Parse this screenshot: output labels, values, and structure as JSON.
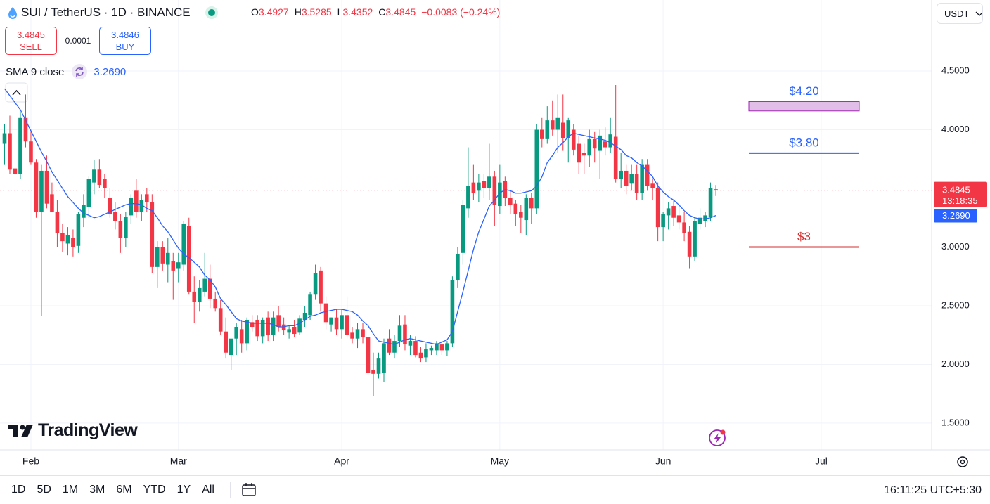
{
  "header": {
    "symbol": "SUI / TetherUS · 1D · BINANCE",
    "o": "O",
    "h": "H",
    "l": "L",
    "c": "C",
    "change": "−0.0083 (−0.24%)",
    "currency": "USDT"
  },
  "trade": {
    "sell_price": "3.4845",
    "sell": "SELL",
    "spread": "0.0001",
    "buy_price": "3.4846",
    "buy": "BUY"
  },
  "countdown": "13:18:35",
  "logo": "TradingView",
  "toolbar": {
    "timeframes": [
      "1D",
      "5D",
      "1M",
      "3M",
      "6M",
      "YTD",
      "1Y",
      "All"
    ],
    "clock": "16:11:25 UTC+5:30"
  },
  "chart_data": {
    "type": "candlestick",
    "categories": [
      null,
      null,
      null,
      null,
      null,
      "Feb",
      null,
      null,
      null,
      null,
      null,
      null,
      null,
      null,
      null,
      null,
      null,
      null,
      null,
      null,
      null,
      null,
      null,
      null,
      null,
      null,
      null,
      null,
      null,
      null,
      null,
      null,
      null,
      "Mar",
      null,
      null,
      null,
      null,
      null,
      null,
      null,
      null,
      null,
      null,
      null,
      null,
      null,
      null,
      null,
      null,
      null,
      null,
      null,
      null,
      null,
      null,
      null,
      null,
      null,
      null,
      null,
      null,
      null,
      null,
      "Apr",
      null,
      null,
      null,
      null,
      null,
      null,
      null,
      null,
      null,
      null,
      null,
      null,
      null,
      null,
      null,
      null,
      null,
      null,
      null,
      null,
      null,
      null,
      null,
      null,
      null,
      null,
      null,
      null,
      null,
      "May",
      null,
      null,
      null,
      null,
      null,
      null,
      null,
      null,
      null,
      null,
      null,
      null,
      null,
      null,
      null,
      null,
      null,
      null,
      null,
      null,
      null,
      null,
      null,
      null,
      null,
      null,
      null,
      null,
      null,
      null,
      "Jun",
      null,
      null,
      null,
      null,
      null,
      null,
      null,
      null,
      null,
      null,
      null,
      null,
      null,
      null,
      null,
      null,
      null,
      null,
      null,
      null,
      null,
      null,
      null,
      null,
      null,
      null,
      null,
      null,
      null,
      "Jul"
    ],
    "open": [
      3.88,
      3.97,
      3.67,
      3.62,
      4.1,
      3.9,
      3.72,
      3.3,
      3.65,
      3.45,
      3.3,
      3.12,
      3.03,
      3.08,
      3.01,
      3.25,
      3.34,
      3.55,
      3.66,
      3.58,
      3.42,
      3.3,
      3.22,
      3.08,
      3.27,
      3.48,
      3.3,
      3.45,
      3.38,
      2.83,
      3.0,
      2.85,
      2.88,
      2.82,
      2.85,
      3.18,
      2.62,
      2.53,
      2.62,
      2.73,
      2.56,
      2.48,
      2.28,
      2.08,
      2.22,
      2.3,
      2.18,
      2.36,
      2.38,
      2.24,
      2.4,
      2.25,
      2.42,
      2.34,
      2.27,
      2.32,
      2.27,
      2.38,
      2.42,
      2.6,
      2.8,
      2.52,
      2.34,
      2.4,
      2.3,
      2.42,
      2.27,
      2.22,
      2.3,
      2.23,
      1.95,
      1.92,
      1.93,
      2.22,
      2.1,
      2.2,
      2.34,
      2.16,
      2.2,
      2.1,
      2.06,
      2.12,
      2.12,
      2.17,
      2.12,
      2.18,
      2.72,
      2.95,
      3.33,
      3.55,
      3.48,
      3.56,
      3.5,
      3.6,
      3.35,
      3.56,
      3.42,
      3.37,
      3.3,
      3.23,
      3.42,
      3.33,
      4.0,
      3.92,
      4.08,
      4.0,
      4.06,
      3.93,
      4.0,
      3.88,
      3.8,
      3.78,
      3.92,
      3.82,
      3.9,
      3.85,
      3.94,
      3.58,
      3.65,
      3.54,
      3.62,
      3.46,
      3.7,
      3.54,
      3.5,
      3.17,
      3.27,
      3.35,
      3.27,
      3.21,
      3.13,
      2.92,
      3.2,
      3.22,
      3.26,
      3.4927,
      null,
      null,
      null,
      null,
      null,
      null,
      null,
      null,
      null,
      null,
      null,
      null,
      null,
      null,
      null,
      null,
      null,
      null,
      null,
      null
    ],
    "high": [
      4.05,
      4.12,
      3.8,
      4.15,
      4.3,
      4.0,
      3.75,
      3.7,
      3.78,
      3.55,
      3.4,
      3.2,
      3.17,
      3.15,
      3.3,
      3.45,
      3.6,
      3.74,
      3.75,
      3.62,
      3.5,
      3.38,
      3.28,
      3.3,
      3.45,
      3.58,
      3.45,
      3.5,
      3.45,
      3.05,
      3.05,
      3.08,
      2.95,
      2.95,
      3.22,
      3.25,
      2.75,
      2.72,
      2.95,
      2.85,
      2.62,
      2.55,
      2.4,
      2.2,
      2.35,
      2.38,
      2.4,
      2.42,
      2.42,
      2.4,
      2.45,
      2.45,
      2.5,
      2.4,
      2.33,
      2.38,
      2.42,
      2.5,
      2.62,
      2.85,
      2.83,
      2.58,
      2.4,
      2.47,
      2.47,
      2.58,
      2.32,
      2.35,
      2.35,
      2.25,
      2.1,
      2.1,
      2.22,
      2.3,
      2.25,
      2.42,
      2.42,
      2.25,
      2.24,
      2.15,
      2.18,
      2.16,
      2.2,
      2.2,
      2.2,
      2.75,
      3.0,
      3.4,
      3.85,
      3.7,
      3.62,
      3.62,
      3.88,
      3.65,
      3.7,
      3.6,
      3.48,
      3.4,
      3.36,
      3.45,
      3.46,
      4.05,
      4.1,
      4.2,
      4.25,
      4.3,
      4.3,
      4.1,
      4.05,
      3.95,
      3.88,
      4.0,
      3.98,
      4.0,
      4.02,
      4.1,
      4.38,
      3.8,
      3.7,
      3.7,
      3.7,
      3.75,
      3.75,
      3.58,
      3.55,
      3.3,
      3.38,
      3.4,
      3.35,
      3.3,
      3.18,
      3.25,
      3.33,
      3.3,
      3.55,
      3.5285,
      null,
      null,
      null,
      null,
      null,
      null,
      null,
      null,
      null,
      null,
      null,
      null,
      null,
      null,
      null,
      null,
      null,
      null,
      null,
      null
    ],
    "low": [
      3.7,
      3.62,
      3.55,
      3.58,
      3.85,
      3.7,
      3.25,
      2.41,
      3.33,
      3.3,
      3.0,
      2.96,
      2.93,
      2.92,
      2.95,
      3.17,
      3.25,
      3.45,
      3.5,
      3.42,
      3.25,
      3.15,
      2.95,
      3.0,
      3.2,
      3.25,
      3.22,
      3.3,
      2.78,
      2.65,
      2.8,
      2.7,
      2.55,
      2.7,
      2.8,
      2.6,
      2.35,
      2.45,
      2.58,
      2.48,
      2.45,
      2.25,
      2.05,
      1.95,
      2.08,
      2.1,
      2.12,
      2.28,
      2.2,
      2.18,
      2.2,
      2.2,
      2.28,
      2.25,
      2.22,
      2.23,
      2.25,
      2.32,
      2.38,
      2.55,
      2.45,
      2.3,
      2.28,
      2.25,
      2.22,
      2.22,
      2.18,
      2.14,
      2.18,
      1.9,
      1.73,
      1.88,
      1.85,
      2.08,
      2.05,
      2.15,
      2.12,
      2.08,
      2.06,
      2.02,
      2.02,
      2.08,
      2.08,
      2.08,
      2.07,
      2.15,
      2.65,
      2.85,
      3.25,
      3.4,
      3.38,
      3.42,
      3.4,
      3.18,
      3.28,
      3.35,
      3.28,
      3.18,
      3.12,
      3.1,
      3.2,
      3.28,
      3.85,
      3.88,
      3.95,
      3.8,
      3.82,
      3.72,
      3.78,
      3.62,
      3.62,
      3.68,
      3.72,
      3.58,
      3.78,
      3.8,
      3.55,
      3.5,
      3.45,
      3.48,
      3.4,
      3.4,
      3.48,
      3.4,
      3.05,
      3.05,
      3.15,
      3.18,
      3.15,
      3.05,
      2.82,
      2.88,
      3.15,
      3.17,
      3.22,
      3.4352,
      null,
      null,
      null,
      null,
      null,
      null,
      null,
      null,
      null,
      null,
      null,
      null,
      null,
      null,
      null,
      null,
      null,
      null,
      null,
      null
    ],
    "close": [
      3.97,
      3.66,
      3.62,
      4.1,
      3.9,
      3.72,
      3.3,
      3.65,
      3.37,
      3.3,
      3.12,
      3.05,
      3.1,
      3.0,
      3.28,
      3.36,
      3.58,
      3.66,
      3.53,
      3.5,
      3.28,
      3.22,
      3.08,
      3.26,
      3.42,
      3.3,
      3.4,
      3.38,
      2.83,
      3.0,
      2.86,
      2.95,
      2.8,
      2.87,
      3.2,
      2.62,
      2.53,
      2.65,
      2.73,
      2.56,
      2.48,
      2.28,
      2.1,
      2.22,
      2.32,
      2.18,
      2.38,
      2.32,
      2.24,
      2.38,
      2.25,
      2.4,
      2.32,
      2.29,
      2.3,
      2.26,
      2.39,
      2.44,
      2.6,
      2.78,
      2.52,
      2.36,
      2.4,
      2.3,
      2.42,
      2.25,
      2.22,
      2.3,
      2.23,
      1.93,
      1.92,
      2.05,
      2.18,
      2.1,
      2.2,
      2.33,
      2.17,
      2.2,
      2.08,
      2.05,
      2.13,
      2.14,
      2.18,
      2.12,
      2.18,
      2.72,
      2.94,
      3.36,
      3.52,
      3.46,
      3.55,
      3.5,
      3.6,
      3.36,
      3.55,
      3.42,
      3.36,
      3.28,
      3.25,
      3.42,
      3.33,
      4.0,
      3.92,
      4.08,
      4.0,
      4.1,
      3.93,
      4.08,
      3.83,
      3.72,
      3.78,
      3.92,
      3.84,
      3.95,
      3.85,
      3.96,
      3.58,
      3.65,
      3.52,
      3.62,
      3.46,
      3.7,
      3.52,
      3.5,
      3.17,
      3.28,
      3.33,
      3.25,
      3.21,
      3.12,
      2.92,
      3.22,
      3.25,
      3.27,
      3.5,
      3.4845,
      null,
      null,
      null,
      null,
      null,
      null,
      null,
      null,
      null,
      null,
      null,
      null,
      null,
      null,
      null,
      null,
      null,
      null,
      null,
      null
    ],
    "up_color": "#089981",
    "down_color": "#f23645",
    "overlay": {
      "name": "SMA 9 close",
      "color": "#2962ff",
      "last_label": "3.2690",
      "values": [
        4.35,
        4.29,
        4.23,
        4.17,
        4.08,
        3.99,
        3.9,
        3.81,
        3.73,
        3.64,
        3.57,
        3.5,
        3.43,
        3.38,
        3.33,
        3.29,
        3.27,
        3.25,
        3.26,
        3.28,
        3.3,
        3.32,
        3.34,
        3.36,
        3.37,
        3.37,
        3.36,
        3.33,
        3.31,
        3.25,
        3.18,
        3.13,
        3.06,
        2.99,
        2.94,
        2.91,
        2.87,
        2.83,
        2.76,
        2.72,
        2.66,
        2.56,
        2.51,
        2.45,
        2.39,
        2.37,
        2.36,
        2.35,
        2.35,
        2.35,
        2.35,
        2.34,
        2.32,
        2.32,
        2.33,
        2.33,
        2.35,
        2.38,
        2.41,
        2.42,
        2.44,
        2.45,
        2.46,
        2.47,
        2.47,
        2.46,
        2.45,
        2.42,
        2.37,
        2.33,
        2.26,
        2.2,
        2.19,
        2.18,
        2.17,
        2.19,
        2.21,
        2.22,
        2.21,
        2.2,
        2.19,
        2.18,
        2.17,
        2.19,
        2.21,
        2.28,
        2.45,
        2.62,
        2.8,
        2.98,
        3.13,
        3.24,
        3.35,
        3.4,
        3.46,
        3.49,
        3.48,
        3.46,
        3.46,
        3.47,
        3.48,
        3.52,
        3.6,
        3.72,
        3.78,
        3.85,
        3.89,
        3.94,
        3.97,
        3.96,
        3.95,
        3.94,
        3.93,
        3.92,
        3.91,
        3.89,
        3.86,
        3.83,
        3.78,
        3.76,
        3.72,
        3.69,
        3.65,
        3.6,
        3.52,
        3.47,
        3.43,
        3.4,
        3.36,
        3.31,
        3.27,
        3.25,
        3.24,
        3.24,
        3.25,
        3.269,
        null,
        null,
        null,
        null,
        null,
        null,
        null,
        null,
        null,
        null,
        null,
        null,
        null,
        null,
        null,
        null,
        null,
        null,
        null,
        null
      ]
    },
    "annotations": [
      {
        "kind": "zone",
        "label": "$4.20",
        "value": 4.2,
        "low": 4.16,
        "high": 4.24,
        "color": "#9c27b0",
        "fill": "#e1bee7",
        "label_color": "#2962ff"
      },
      {
        "kind": "line",
        "label": "$3.80",
        "value": 3.8,
        "color": "#2962ff",
        "label_color": "#2962ff"
      },
      {
        "kind": "line",
        "label": "$3",
        "value": 3,
        "color": "#d32f2f",
        "label_color": "#d32f2f"
      }
    ],
    "ylim": [
      1.272,
      5.105
    ],
    "yticks": [
      {
        "value": 1.5,
        "label": "1.5000"
      },
      {
        "value": 2,
        "label": "2.0000"
      },
      {
        "value": 2.5,
        "label": "2.5000"
      },
      {
        "value": 3,
        "label": "3.0000"
      },
      {
        "value": 4,
        "label": "4.0000"
      },
      {
        "value": 4.5,
        "label": "4.5000"
      }
    ],
    "grid": true
  }
}
